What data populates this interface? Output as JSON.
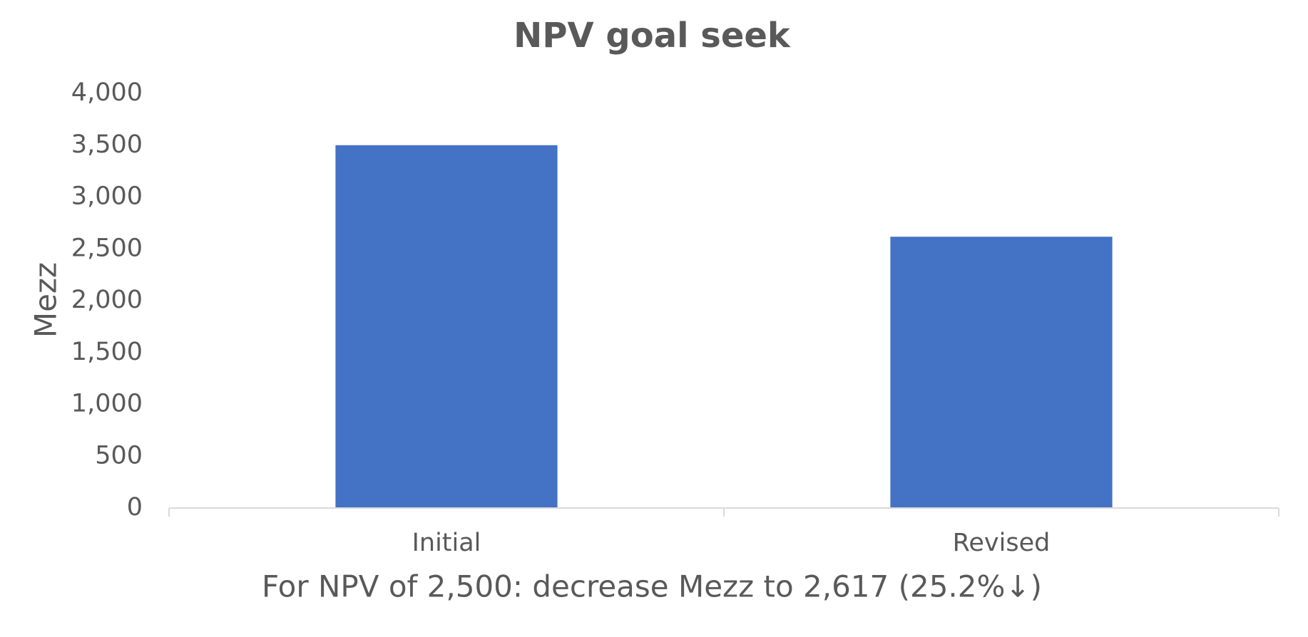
{
  "chart_data": {
    "type": "bar",
    "title": "NPV goal seek",
    "x_label": "For NPV of 2,500: decrease Mezz to 2,617 (25.2%↓)",
    "y_label": "Mezz",
    "categories": [
      "Initial",
      "Revised"
    ],
    "values": [
      3500,
      2617
    ],
    "color": "#4472c4",
    "ylim": [
      0,
      4000
    ],
    "yticks": [
      0,
      500,
      {
        "value": 1000,
        "label": "1,000"
      },
      {
        "value": 1500,
        "label": "1,500"
      },
      {
        "value": 2000,
        "label": "2,000"
      },
      {
        "value": 2500,
        "label": "2,500"
      },
      {
        "value": 3000,
        "label": "3,000"
      },
      {
        "value": 3500,
        "label": "3,500"
      },
      {
        "value": 4000,
        "label": "4,000"
      }
    ],
    "grid": false
  }
}
